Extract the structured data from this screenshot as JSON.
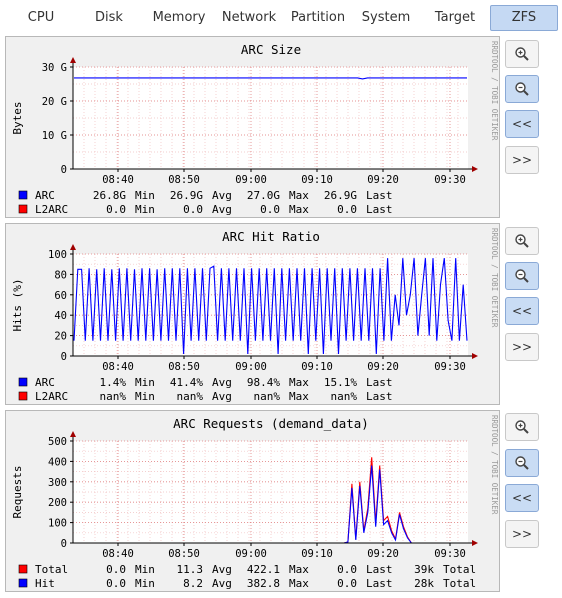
{
  "tabs": [
    {
      "label": "CPU",
      "active": false
    },
    {
      "label": "Disk",
      "active": false
    },
    {
      "label": "Memory",
      "active": false
    },
    {
      "label": "Network",
      "active": false
    },
    {
      "label": "Partition",
      "active": false
    },
    {
      "label": "System",
      "active": false
    },
    {
      "label": "Target",
      "active": false
    },
    {
      "label": "ZFS",
      "active": true
    }
  ],
  "side_buttons": {
    "zoom_in_icon": "zoom-in-icon",
    "zoom_out_icon": "zoom-out-icon",
    "back_label": "<<",
    "forward_label": ">>"
  },
  "watermark": "RRDTOOL / TOBI OETIKER",
  "chart_data": [
    {
      "type": "line",
      "title": "ARC Size",
      "ylabel": "Bytes",
      "ylim": [
        0,
        30
      ],
      "yticks": [
        0,
        10,
        20,
        30
      ],
      "ytick_labels": [
        "0",
        "10 G",
        "20 G",
        "30 G"
      ],
      "xtick_labels": [
        "08:40",
        "08:50",
        "09:00",
        "09:10",
        "09:20",
        "09:30"
      ],
      "grid": true,
      "series": [
        {
          "name": "ARC",
          "color": "#0000ff",
          "values": [
            26.8,
            26.8,
            26.8,
            26.8,
            26.8,
            26.8,
            26.8,
            26.8,
            26.8,
            26.8,
            26.8,
            26.8,
            26.8,
            26.8,
            26.8,
            26.8,
            26.8,
            26.8,
            26.8,
            26.8,
            26.8,
            26.8,
            26.8,
            26.8,
            26.8,
            26.8,
            26.8,
            26.8,
            26.8,
            26.8,
            26.8,
            26.8,
            26.8,
            26.8,
            26.8,
            26.8,
            26.8,
            26.8,
            26.8,
            26.8,
            26.8,
            26.8,
            26.8,
            26.8,
            26.8,
            26.8,
            26.8,
            26.8,
            26.8,
            26.8,
            26.8,
            26.8,
            26.8,
            26.8,
            26.8,
            26.8,
            26.8,
            26.8,
            26.5,
            26.8,
            26.8,
            26.8,
            26.8,
            26.8,
            26.8,
            26.8,
            26.8,
            26.8,
            26.8,
            26.8,
            26.8,
            26.8,
            26.8,
            26.8,
            26.8,
            26.8,
            26.8,
            26.8,
            26.8,
            26.8
          ]
        },
        {
          "name": "L2ARC",
          "color": "#ff0000",
          "values": [
            0,
            0,
            0,
            0,
            0,
            0,
            0,
            0,
            0,
            0,
            0,
            0,
            0,
            0,
            0,
            0,
            0,
            0,
            0,
            0,
            0,
            0,
            0,
            0,
            0,
            0,
            0,
            0,
            0,
            0,
            0,
            0,
            0,
            0,
            0,
            0,
            0,
            0,
            0,
            0,
            0,
            0,
            0,
            0,
            0,
            0,
            0,
            0,
            0,
            0,
            0,
            0,
            0,
            0,
            0,
            0,
            0,
            0,
            0,
            0,
            0,
            0,
            0,
            0,
            0,
            0,
            0,
            0,
            0,
            0,
            0,
            0,
            0,
            0,
            0,
            0,
            0,
            0,
            0,
            0
          ]
        }
      ],
      "legend": [
        {
          "name": "ARC",
          "color": "#0000ff",
          "stats": [
            {
              "value": "26.8G",
              "label": "Min"
            },
            {
              "value": "26.9G",
              "label": "Avg"
            },
            {
              "value": "27.0G",
              "label": "Max"
            },
            {
              "value": "26.9G",
              "label": "Last"
            }
          ]
        },
        {
          "name": "L2ARC",
          "color": "#ff0000",
          "stats": [
            {
              "value": "0.0",
              "label": "Min"
            },
            {
              "value": "0.0",
              "label": "Avg"
            },
            {
              "value": "0.0",
              "label": "Max"
            },
            {
              "value": "0.0",
              "label": "Last"
            }
          ]
        }
      ]
    },
    {
      "type": "line",
      "title": "ARC Hit Ratio",
      "ylabel": "Hits (%)",
      "ylim": [
        0,
        100
      ],
      "yticks": [
        0,
        20,
        40,
        60,
        80,
        100
      ],
      "ytick_labels": [
        "0",
        "20",
        "40",
        "60",
        "80",
        "100"
      ],
      "xtick_labels": [
        "08:40",
        "08:50",
        "09:00",
        "09:10",
        "09:20",
        "09:30"
      ],
      "grid": true,
      "series": [
        {
          "name": "ARC",
          "color": "#0000ff",
          "values": [
            15,
            85,
            85,
            15,
            86,
            15,
            85,
            15,
            86,
            15,
            85,
            15,
            86,
            15,
            86,
            15,
            85,
            15,
            86,
            15,
            86,
            15,
            85,
            15,
            86,
            15,
            86,
            15,
            86,
            2,
            86,
            15,
            86,
            15,
            86,
            15,
            86,
            88,
            15,
            86,
            15,
            86,
            15,
            86,
            15,
            86,
            2,
            86,
            15,
            86,
            15,
            86,
            15,
            86,
            2,
            86,
            15,
            86,
            15,
            86,
            15,
            86,
            2,
            86,
            15,
            86,
            2,
            86,
            15,
            86,
            2,
            86,
            15,
            86,
            15,
            86,
            15,
            86,
            15,
            86,
            2,
            86,
            15,
            96,
            15,
            60,
            30,
            96,
            40,
            60,
            96,
            20,
            60,
            96,
            20,
            96,
            15,
            70,
            96,
            35,
            15,
            96,
            15,
            70,
            15
          ]
        }
      ],
      "legend": [
        {
          "name": "ARC",
          "color": "#0000ff",
          "stats": [
            {
              "value": "1.4%",
              "label": "Min"
            },
            {
              "value": "41.4%",
              "label": "Avg"
            },
            {
              "value": "98.4%",
              "label": "Max"
            },
            {
              "value": "15.1%",
              "label": "Last"
            }
          ]
        },
        {
          "name": "L2ARC",
          "color": "#ff0000",
          "stats": [
            {
              "value": "nan%",
              "label": "Min"
            },
            {
              "value": "nan%",
              "label": "Avg"
            },
            {
              "value": "nan%",
              "label": "Max"
            },
            {
              "value": "nan%",
              "label": "Last"
            }
          ]
        }
      ]
    },
    {
      "type": "line",
      "title": "ARC Requests (demand_data)",
      "ylabel": "Requests",
      "ylim": [
        0,
        500
      ],
      "yticks": [
        0,
        100,
        200,
        300,
        400,
        500
      ],
      "ytick_labels": [
        "0",
        "100",
        "200",
        "300",
        "400",
        "500"
      ],
      "xtick_labels": [
        "08:40",
        "08:50",
        "09:00",
        "09:10",
        "09:20",
        "09:30"
      ],
      "grid": true,
      "series": [
        {
          "name": "Total",
          "color": "#ff0000",
          "values": [
            0,
            0,
            0,
            0,
            0,
            0,
            0,
            0,
            0,
            0,
            0,
            0,
            0,
            0,
            0,
            0,
            0,
            0,
            0,
            0,
            0,
            0,
            0,
            0,
            0,
            0,
            0,
            0,
            0,
            0,
            0,
            0,
            0,
            0,
            0,
            0,
            0,
            0,
            0,
            0,
            0,
            0,
            0,
            0,
            0,
            0,
            0,
            0,
            0,
            0,
            0,
            0,
            0,
            0,
            0,
            0,
            0,
            0,
            0,
            0,
            0,
            0,
            0,
            0,
            0,
            0,
            0,
            0,
            0,
            5,
            290,
            20,
            300,
            60,
            170,
            420,
            100,
            380,
            110,
            130,
            60,
            20,
            150,
            80,
            30,
            0,
            0,
            0,
            0,
            0,
            0,
            0,
            0,
            0,
            0,
            0,
            0,
            0,
            0,
            0
          ]
        },
        {
          "name": "Hit",
          "color": "#0000ff",
          "values": [
            0,
            0,
            0,
            0,
            0,
            0,
            0,
            0,
            0,
            0,
            0,
            0,
            0,
            0,
            0,
            0,
            0,
            0,
            0,
            0,
            0,
            0,
            0,
            0,
            0,
            0,
            0,
            0,
            0,
            0,
            0,
            0,
            0,
            0,
            0,
            0,
            0,
            0,
            0,
            0,
            0,
            0,
            0,
            0,
            0,
            0,
            0,
            0,
            0,
            0,
            0,
            0,
            0,
            0,
            0,
            0,
            0,
            0,
            0,
            0,
            0,
            0,
            0,
            0,
            0,
            0,
            0,
            0,
            0,
            5,
            270,
            15,
            280,
            50,
            150,
            380,
            80,
            360,
            90,
            110,
            50,
            15,
            140,
            70,
            25,
            0,
            0,
            0,
            0,
            0,
            0,
            0,
            0,
            0,
            0,
            0,
            0,
            0,
            0,
            0
          ]
        }
      ],
      "legend": [
        {
          "name": "Total",
          "color": "#ff0000",
          "stats": [
            {
              "value": "0.0",
              "label": "Min"
            },
            {
              "value": "11.3",
              "label": "Avg"
            },
            {
              "value": "422.1",
              "label": "Max"
            },
            {
              "value": "0.0",
              "label": "Last"
            },
            {
              "value": "39k",
              "label": "Total"
            }
          ]
        },
        {
          "name": "Hit",
          "color": "#0000ff",
          "stats": [
            {
              "value": "0.0",
              "label": "Min"
            },
            {
              "value": "8.2",
              "label": "Avg"
            },
            {
              "value": "382.8",
              "label": "Max"
            },
            {
              "value": "0.0",
              "label": "Last"
            },
            {
              "value": "28k",
              "label": "Total"
            }
          ]
        }
      ]
    }
  ]
}
